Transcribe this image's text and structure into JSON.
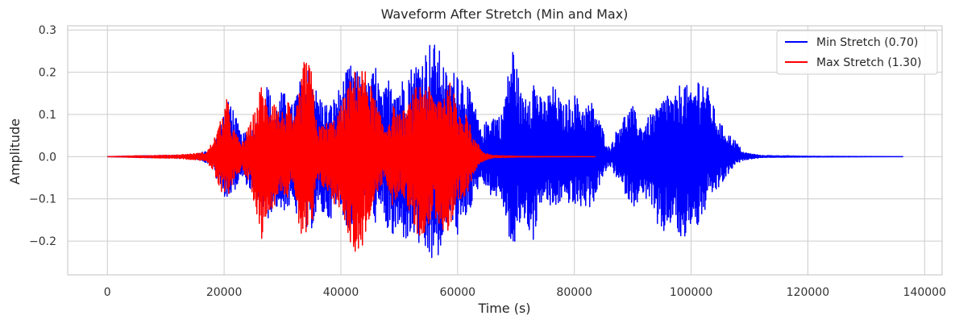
{
  "chart_data": {
    "type": "line",
    "title": "Waveform After Stretch (Min and Max)",
    "xlabel": "Time (s)",
    "ylabel": "Amplitude",
    "xlim": [
      -6800,
      143000
    ],
    "ylim": [
      -0.28,
      0.31
    ],
    "x_ticks": [
      0,
      20000,
      40000,
      60000,
      80000,
      100000,
      120000,
      140000
    ],
    "x_tick_labels": [
      "0",
      "20000",
      "40000",
      "60000",
      "80000",
      "100000",
      "120000",
      "140000"
    ],
    "y_ticks": [
      -0.2,
      -0.1,
      0.0,
      0.1,
      0.2,
      0.3
    ],
    "y_tick_labels": [
      "−0.2",
      "−0.1",
      "0.0",
      "0.1",
      "0.2",
      "0.3"
    ],
    "grid": true,
    "legend_position": "top-right",
    "series": [
      {
        "name": "Min Stretch (0.70)",
        "color": "#0000ff",
        "x_range": [
          0,
          136400
        ],
        "envelope": {
          "x": [
            0,
            5000,
            15000,
            18000,
            19500,
            21000,
            23000,
            24500,
            26000,
            27500,
            28500,
            30000,
            31500,
            33000,
            34500,
            36000,
            38000,
            40000,
            41500,
            43000,
            44500,
            46000,
            47000,
            48500,
            50000,
            51000,
            52500,
            54000,
            55500,
            57000,
            58500,
            60000,
            61500,
            63000,
            64000,
            65500,
            67500,
            69500,
            71000,
            73000,
            74500,
            76500,
            78000,
            80000,
            81500,
            83000,
            84500,
            86000,
            88000,
            90000,
            91500,
            93000,
            94500,
            96000,
            97000,
            98500,
            100000,
            101500,
            103000,
            104500,
            106000,
            107500,
            109000,
            112000,
            120000,
            136400
          ],
          "upper": [
            0,
            0.002,
            0.004,
            0.02,
            0.09,
            0.14,
            0.05,
            0.07,
            0.09,
            0.18,
            0.1,
            0.16,
            0.12,
            0.18,
            0.22,
            0.15,
            0.12,
            0.17,
            0.22,
            0.2,
            0.17,
            0.22,
            0.14,
            0.2,
            0.17,
            0.2,
            0.22,
            0.24,
            0.28,
            0.25,
            0.18,
            0.22,
            0.18,
            0.12,
            0.06,
            0.1,
            0.1,
            0.27,
            0.14,
            0.19,
            0.13,
            0.17,
            0.12,
            0.15,
            0.12,
            0.13,
            0.08,
            0.02,
            0.09,
            0.12,
            0.07,
            0.1,
            0.12,
            0.16,
            0.13,
            0.19,
            0.15,
            0.2,
            0.16,
            0.09,
            0.06,
            0.04,
            0.01,
            0.003,
            0.001,
            0
          ],
          "lower": [
            0,
            -0.002,
            -0.004,
            -0.02,
            -0.09,
            -0.1,
            -0.05,
            -0.08,
            -0.11,
            -0.15,
            -0.12,
            -0.13,
            -0.12,
            -0.15,
            -0.19,
            -0.13,
            -0.15,
            -0.12,
            -0.19,
            -0.15,
            -0.12,
            -0.16,
            -0.13,
            -0.2,
            -0.18,
            -0.2,
            -0.19,
            -0.23,
            -0.25,
            -0.24,
            -0.14,
            -0.19,
            -0.14,
            -0.1,
            -0.05,
            -0.09,
            -0.1,
            -0.24,
            -0.14,
            -0.2,
            -0.1,
            -0.13,
            -0.1,
            -0.12,
            -0.12,
            -0.12,
            -0.06,
            -0.02,
            -0.07,
            -0.12,
            -0.1,
            -0.1,
            -0.2,
            -0.17,
            -0.15,
            -0.22,
            -0.16,
            -0.17,
            -0.1,
            -0.08,
            -0.05,
            -0.02,
            -0.008,
            -0.002,
            -0.001,
            0
          ]
        }
      },
      {
        "name": "Max Stretch (1.30)",
        "color": "#ff0000",
        "x_range": [
          0,
          83600
        ],
        "envelope": {
          "x": [
            0,
            5000,
            12000,
            17000,
            18500,
            19500,
            20500,
            21500,
            23000,
            24500,
            25500,
            26500,
            27500,
            28500,
            29500,
            31000,
            32000,
            33000,
            34000,
            35000,
            36000,
            37500,
            39000,
            40000,
            41500,
            43000,
            44500,
            46000,
            47500,
            49000,
            50000,
            51500,
            53000,
            54500,
            56000,
            57500,
            59000,
            60000,
            61500,
            62500,
            63500,
            64500,
            66000,
            70000,
            83600
          ],
          "upper": [
            0,
            0.002,
            0.004,
            0.01,
            0.05,
            0.09,
            0.14,
            0.07,
            0.03,
            0.08,
            0.12,
            0.18,
            0.12,
            0.16,
            0.1,
            0.13,
            0.08,
            0.17,
            0.25,
            0.2,
            0.07,
            0.08,
            0.09,
            0.12,
            0.18,
            0.22,
            0.2,
            0.13,
            0.07,
            0.12,
            0.1,
            0.12,
            0.17,
            0.18,
            0.14,
            0.16,
            0.18,
            0.1,
            0.12,
            0.05,
            0.03,
            0.01,
            0.003,
            0.001,
            0
          ],
          "lower": [
            0,
            -0.002,
            -0.004,
            -0.01,
            -0.05,
            -0.09,
            -0.1,
            -0.06,
            -0.03,
            -0.07,
            -0.13,
            -0.2,
            -0.13,
            -0.12,
            -0.08,
            -0.1,
            -0.07,
            -0.19,
            -0.2,
            -0.18,
            -0.06,
            -0.08,
            -0.12,
            -0.12,
            -0.2,
            -0.25,
            -0.17,
            -0.1,
            -0.05,
            -0.13,
            -0.08,
            -0.12,
            -0.19,
            -0.18,
            -0.14,
            -0.18,
            -0.2,
            -0.12,
            -0.1,
            -0.05,
            -0.02,
            -0.01,
            -0.003,
            -0.001,
            0
          ]
        }
      }
    ]
  }
}
